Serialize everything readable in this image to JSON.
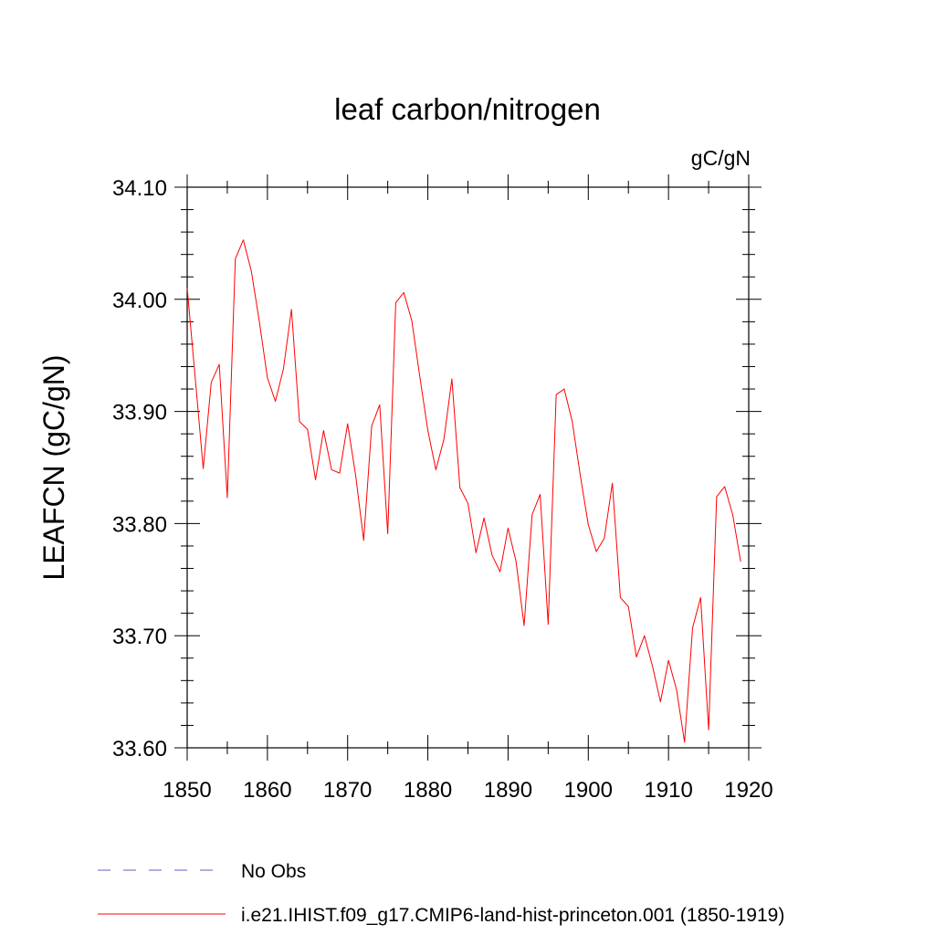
{
  "chart_data": {
    "type": "line",
    "title": "leaf carbon/nitrogen",
    "units": "gC/gN",
    "ylabel": "LEAFCN  (gC/gN)",
    "xlabel": "",
    "xlim": [
      1850,
      1920
    ],
    "ylim": [
      33.6,
      34.1
    ],
    "xticks": [
      1850,
      1860,
      1870,
      1880,
      1890,
      1900,
      1910,
      1920
    ],
    "xtick_labels": [
      "1850",
      "1860",
      "1870",
      "1880",
      "1890",
      "1900",
      "1910",
      "1920"
    ],
    "yticks": [
      33.6,
      33.7,
      33.8,
      33.9,
      34.0,
      34.1
    ],
    "ytick_labels": [
      "33.60",
      "33.70",
      "33.80",
      "33.90",
      "34.00",
      "34.10"
    ],
    "grid": false,
    "legend_position": "bottom",
    "series": [
      {
        "name": "i.e21.IHIST.f09_g17.CMIP6-land-hist-princeton.001 (1850-1919)",
        "color": "#ff0000",
        "style": "solid",
        "x": [
          1850,
          1851,
          1852,
          1853,
          1854,
          1855,
          1856,
          1857,
          1858,
          1859,
          1860,
          1861,
          1862,
          1863,
          1864,
          1865,
          1866,
          1867,
          1868,
          1869,
          1870,
          1871,
          1872,
          1873,
          1874,
          1875,
          1876,
          1877,
          1878,
          1879,
          1880,
          1881,
          1882,
          1883,
          1884,
          1885,
          1886,
          1887,
          1888,
          1889,
          1890,
          1891,
          1892,
          1893,
          1894,
          1895,
          1896,
          1897,
          1898,
          1899,
          1900,
          1901,
          1902,
          1903,
          1904,
          1905,
          1906,
          1907,
          1908,
          1909,
          1910,
          1911,
          1912,
          1913,
          1914,
          1915,
          1916,
          1917,
          1918,
          1919
        ],
        "y": [
          34.01,
          33.93,
          33.849,
          33.926,
          33.942,
          33.823,
          34.036,
          34.053,
          34.025,
          33.98,
          33.93,
          33.909,
          33.938,
          33.991,
          33.891,
          33.884,
          33.839,
          33.883,
          33.848,
          33.845,
          33.889,
          33.843,
          33.785,
          33.887,
          33.906,
          33.791,
          33.997,
          34.006,
          33.981,
          33.931,
          33.883,
          33.848,
          33.875,
          33.929,
          33.832,
          33.818,
          33.774,
          33.805,
          33.772,
          33.757,
          33.796,
          33.766,
          33.709,
          33.808,
          33.826,
          33.71,
          33.915,
          33.92,
          33.891,
          33.843,
          33.799,
          33.775,
          33.787,
          33.836,
          33.734,
          33.726,
          33.681,
          33.7,
          33.673,
          33.641,
          33.678,
          33.652,
          33.605,
          33.707,
          33.734,
          33.616,
          33.824,
          33.833,
          33.808,
          33.766
        ]
      }
    ],
    "legend": [
      {
        "label": "No Obs",
        "color": "#6a5acd",
        "style": "dashed"
      },
      {
        "label": "i.e21.IHIST.f09_g17.CMIP6-land-hist-princeton.001 (1850-1919)",
        "color": "#ff0000",
        "style": "solid"
      }
    ]
  }
}
